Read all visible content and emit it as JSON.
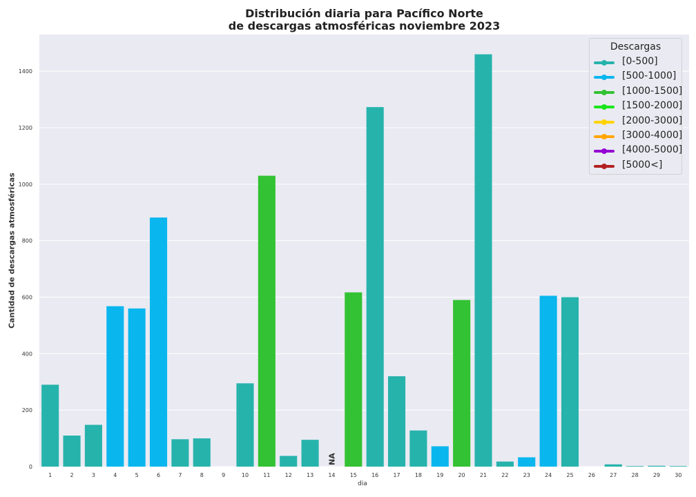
{
  "chart_data": {
    "type": "bar",
    "title_line1": "Distribución diaria para Pacífico Norte",
    "title_line2": "de descargas atmosféricas noviembre 2023",
    "xlabel": "dia",
    "ylabel": "Cantidad de descargas atmosféricas",
    "ylim": [
      0,
      1530
    ],
    "yticks": [
      0,
      200,
      400,
      600,
      800,
      1000,
      1200,
      1400
    ],
    "grid": true,
    "legend_placement": "top-right",
    "legend": {
      "title": "Descargas",
      "entries": [
        {
          "label": "[0-500]",
          "color": "#26b3ac"
        },
        {
          "label": "[500-1000]",
          "color": "#0ab6ee"
        },
        {
          "label": "[1000-1500]",
          "color": "#33c233"
        },
        {
          "label": "[1500-2000]",
          "color": "#19e61c"
        },
        {
          "label": "[2000-3000]",
          "color": "#ffd300"
        },
        {
          "label": "[3000-4000]",
          "color": "#ffa500"
        },
        {
          "label": "[4000-5000]",
          "color": "#9400d3"
        },
        {
          "label": "[5000<]",
          "color": "#b22222"
        }
      ]
    },
    "categories": [
      "1",
      "2",
      "3",
      "4",
      "5",
      "6",
      "7",
      "8",
      "9",
      "10",
      "11",
      "12",
      "13",
      "14",
      "15",
      "16",
      "17",
      "18",
      "19",
      "20",
      "21",
      "22",
      "23",
      "24",
      "25",
      "26",
      "27",
      "28",
      "29",
      "30"
    ],
    "values": [
      290,
      110,
      148,
      568,
      560,
      882,
      97,
      100,
      0,
      295,
      1030,
      38,
      95,
      0,
      617,
      1273,
      320,
      128,
      72,
      590,
      1460,
      18,
      33,
      605,
      600,
      0,
      8,
      2,
      3,
      2
    ],
    "colors": [
      "#26b3ac",
      "#26b3ac",
      "#26b3ac",
      "#0ab6ee",
      "#0ab6ee",
      "#0ab6ee",
      "#26b3ac",
      "#26b3ac",
      "#26b3ac",
      "#26b3ac",
      "#33c233",
      "#26b3ac",
      "#26b3ac",
      "#26b3ac",
      "#33c233",
      "#26b3ac",
      "#26b3ac",
      "#26b3ac",
      "#0ab6ee",
      "#33c233",
      "#26b3ac",
      "#26b3ac",
      "#0ab6ee",
      "#0ab6ee",
      "#26b3ac",
      "#26b3ac",
      "#26b3ac",
      "#26b3ac",
      "#26b3ac",
      "#26b3ac"
    ],
    "annotations": [
      {
        "category": "14",
        "text": "NA"
      }
    ]
  }
}
